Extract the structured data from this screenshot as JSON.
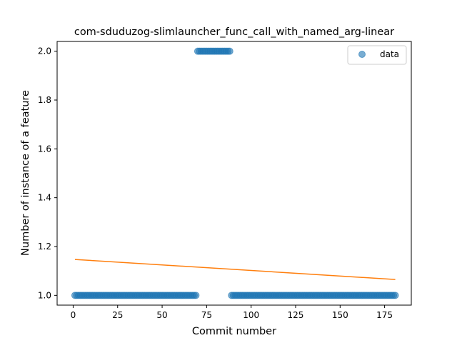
{
  "chart_data": {
    "type": "scatter",
    "title": "com-sduduzog-slimlauncher_func_call_with_named_arg-linear",
    "xlabel": "Commit number",
    "ylabel": "Number of instance of a feature",
    "xlim": [
      -9,
      190
    ],
    "ylim": [
      0.96,
      2.04
    ],
    "x_ticks": [
      0,
      25,
      50,
      75,
      100,
      125,
      150,
      175
    ],
    "y_ticks": [
      1.0,
      1.2,
      1.4,
      1.6,
      1.8,
      2.0
    ],
    "x_tick_labels": [
      "0",
      "25",
      "50",
      "75",
      "100",
      "125",
      "150",
      "175"
    ],
    "y_tick_labels": [
      "1.0",
      "1.2",
      "1.4",
      "1.6",
      "1.8",
      "2.0"
    ],
    "grid": false,
    "legend_position": "top-right",
    "legend": [
      {
        "label": "data",
        "color": "#1f77b4"
      }
    ],
    "series": [
      {
        "name": "data",
        "kind": "scatter",
        "color": "#1f77b4",
        "segments": [
          {
            "x_start": 1,
            "x_end": 69,
            "y": 1.0
          },
          {
            "x_start": 70,
            "x_end": 88,
            "y": 2.0
          },
          {
            "x_start": 89,
            "x_end": 181,
            "y": 1.0
          }
        ]
      },
      {
        "kind": "line",
        "color": "#ff7f0e",
        "x": [
          1,
          181
        ],
        "y": [
          1.147,
          1.065
        ]
      }
    ]
  }
}
